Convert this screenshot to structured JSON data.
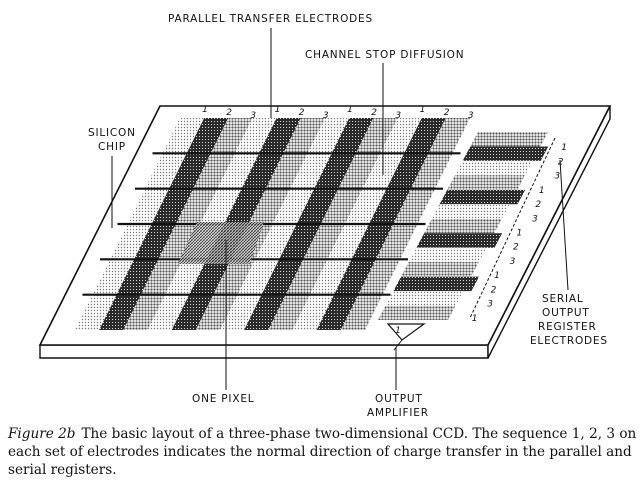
{
  "labels": {
    "parallel_transfer_electrodes": "PARALLEL TRANSFER ELECTRODES",
    "channel_stop_diffusion": "CHANNEL STOP DIFFUSION",
    "silicon_line1": "SILICON",
    "silicon_line2": "CHIP",
    "serial_line1": "SERIAL",
    "serial_line2": "OUTPUT",
    "serial_line3": "REGISTER",
    "serial_line4": "ELECTRODES",
    "one_pixel": "ONE PIXEL",
    "output_line1": "OUTPUT",
    "output_line2": "AMPLIFIER"
  },
  "phase_numbers": {
    "top": [
      "1",
      "2",
      "3",
      "1",
      "2",
      "3",
      "1",
      "2",
      "3",
      "1",
      "2",
      "3"
    ],
    "right": [
      "1",
      "2",
      "3",
      "1",
      "2",
      "3",
      "1",
      "2",
      "3",
      "1",
      "2",
      "3",
      "1"
    ]
  },
  "caption": {
    "figure_label": "Figure 2b",
    "text": "The basic layout of a three-phase two-dimensional CCD. The sequence 1, 2, 3 on each set of electrodes indicates the normal direction of charge transfer in the parallel and serial registers."
  },
  "colors": {
    "ink": "#111111",
    "dark_stipple": "#1e1e1e",
    "mid_stipple": "#6e6e6e",
    "light_stipple": "#b9b9b9",
    "paper": "#ffffff"
  }
}
